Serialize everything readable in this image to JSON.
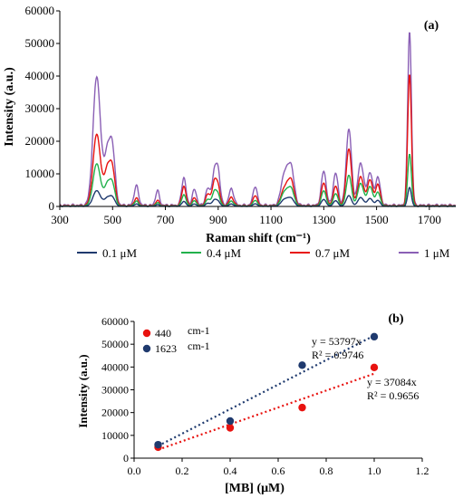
{
  "chart_data": [
    {
      "type": "line",
      "panel_label": "(a)",
      "xlabel": "Raman shift (cm⁻¹)",
      "ylabel": "Intensity (a.u.)",
      "xlim": [
        300,
        1800
      ],
      "ylim": [
        0,
        60000
      ],
      "x_ticks": [
        300,
        500,
        700,
        900,
        1100,
        1300,
        1500,
        1700
      ],
      "y_ticks": [
        0,
        10000,
        20000,
        30000,
        40000,
        50000,
        60000
      ],
      "grid": false,
      "legend_position": "bottom",
      "peaks": [
        {
          "shift": 440,
          "width": 14
        },
        {
          "shift": 480,
          "width": 12
        },
        {
          "shift": 500,
          "width": 10
        },
        {
          "shift": 590,
          "width": 8
        },
        {
          "shift": 670,
          "width": 7
        },
        {
          "shift": 770,
          "width": 8
        },
        {
          "shift": 810,
          "width": 8
        },
        {
          "shift": 860,
          "width": 8
        },
        {
          "shift": 885,
          "width": 9
        },
        {
          "shift": 900,
          "width": 8
        },
        {
          "shift": 950,
          "width": 9
        },
        {
          "shift": 1040,
          "width": 8
        },
        {
          "shift": 1150,
          "width": 12
        },
        {
          "shift": 1175,
          "width": 12
        },
        {
          "shift": 1300,
          "width": 9
        },
        {
          "shift": 1345,
          "width": 9
        },
        {
          "shift": 1395,
          "width": 10
        },
        {
          "shift": 1440,
          "width": 11
        },
        {
          "shift": 1475,
          "width": 10
        },
        {
          "shift": 1505,
          "width": 9
        },
        {
          "shift": 1625,
          "width": 7
        }
      ],
      "series": [
        {
          "name": "0.1 μM",
          "color": "#1f3a6e",
          "peak_heights": [
            4800,
            2500,
            2400,
            700,
            500,
            1500,
            700,
            900,
            1800,
            1300,
            700,
            800,
            2000,
            2500,
            2100,
            1700,
            3300,
            2700,
            2400,
            1800,
            5800
          ]
        },
        {
          "name": "0.4 μM",
          "color": "#22b14c",
          "peak_heights": [
            13000,
            6500,
            6000,
            1500,
            1000,
            3500,
            1600,
            2000,
            4200,
            3000,
            1500,
            1800,
            4000,
            5500,
            4700,
            3800,
            9500,
            7000,
            6000,
            4200,
            16000
          ]
        },
        {
          "name": "0.7 μM",
          "color": "#e8120f",
          "peak_heights": [
            22000,
            11000,
            10000,
            2300,
            1600,
            6000,
            2400,
            3500,
            7000,
            5200,
            2600,
            3200,
            5000,
            8000,
            7000,
            6000,
            17500,
            9000,
            8000,
            6500,
            40500
          ]
        },
        {
          "name": "1 μM",
          "color": "#8a5fb5",
          "peak_heights": [
            39500,
            16000,
            15500,
            6000,
            4500,
            8500,
            4800,
            5000,
            9500,
            9500,
            5000,
            5800,
            9000,
            12000,
            10500,
            9800,
            23500,
            13000,
            10000,
            8500,
            53500
          ]
        }
      ]
    },
    {
      "type": "scatter",
      "panel_label": "(b)",
      "xlabel": "[MB] (μM)",
      "ylabel": "Intensity (a.u.)",
      "xlim": [
        0,
        1.2
      ],
      "ylim": [
        0,
        60000
      ],
      "x_ticks": [
        "0.0",
        "0.2",
        "0.4",
        "0.6",
        "0.8",
        "1.0",
        "1.2"
      ],
      "y_ticks": [
        0,
        10000,
        20000,
        30000,
        40000,
        50000,
        60000
      ],
      "grid": false,
      "legend_position": "top-left",
      "series": [
        {
          "name": "440",
          "unit": "cm-1",
          "color": "#e8120f",
          "x": [
            0.1,
            0.4,
            0.7,
            1.0
          ],
          "y": [
            4800,
            13300,
            22200,
            39800
          ],
          "trendline": {
            "slope": 37084,
            "equation": "y = 37084x",
            "r2": "R² = 0.9656"
          }
        },
        {
          "name": "1623",
          "unit": "cm-1",
          "color": "#1f3a6e",
          "x": [
            0.1,
            0.4,
            0.7,
            1.0
          ],
          "y": [
            5900,
            16300,
            40800,
            53300
          ],
          "trendline": {
            "slope": 53797,
            "equation": "y = 53797x",
            "r2": "R² = 0.9746"
          }
        }
      ]
    }
  ]
}
